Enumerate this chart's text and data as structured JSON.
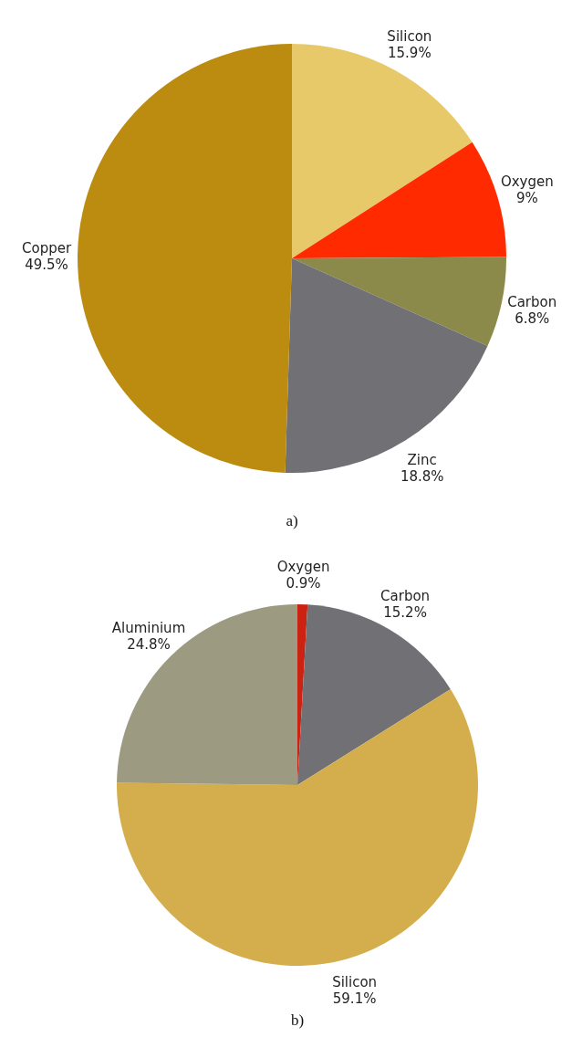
{
  "chart_data": [
    {
      "type": "pie",
      "title": "a)",
      "categories": [
        "Silicon",
        "Oxygen",
        "Carbon",
        "Zinc",
        "Copper"
      ],
      "values": [
        15.9,
        9,
        6.8,
        18.8,
        49.5
      ],
      "value_labels": [
        "15.9%",
        "9%",
        "6.8%",
        "18.8%",
        "49.5%"
      ],
      "colors": [
        "#e8c96a",
        "#ff2a00",
        "#8b8a4b",
        "#707075",
        "#bc8c10"
      ]
    },
    {
      "type": "pie",
      "title": "b)",
      "categories": [
        "Oxygen",
        "Carbon",
        "Silicon",
        "Aluminium"
      ],
      "values": [
        0.9,
        15.2,
        59.1,
        24.8
      ],
      "value_labels": [
        "0.9%",
        "15.2%",
        "59.1%",
        "24.8%"
      ],
      "colors": [
        "#cc2211",
        "#707075",
        "#d4ae4c",
        "#9c9a80"
      ]
    }
  ]
}
